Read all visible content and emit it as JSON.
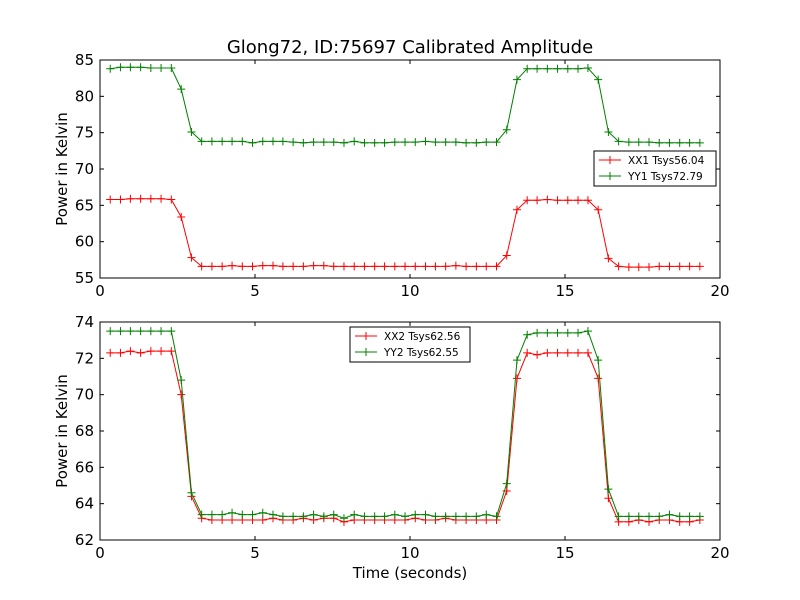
{
  "chart_data": [
    {
      "type": "line",
      "title": "Glong72, ID:75697 Calibrated Amplitude",
      "ylabel": "Power in Kelvin",
      "xlabel": "",
      "xlim": [
        0,
        20
      ],
      "ylim": [
        55,
        85
      ],
      "xticks": [
        "0",
        "5",
        "10",
        "15",
        "20"
      ],
      "yticks": [
        "55",
        "60",
        "65",
        "70",
        "75",
        "80",
        "85"
      ],
      "grid": false,
      "legend_position": "right",
      "x": [
        0.33,
        0.66,
        0.98,
        1.31,
        1.64,
        1.97,
        2.3,
        2.62,
        2.95,
        3.28,
        3.61,
        3.94,
        4.26,
        4.59,
        4.92,
        5.25,
        5.58,
        5.9,
        6.23,
        6.56,
        6.89,
        7.22,
        7.54,
        7.87,
        8.2,
        8.53,
        8.86,
        9.18,
        9.51,
        9.84,
        10.17,
        10.5,
        10.82,
        11.15,
        11.48,
        11.81,
        12.14,
        12.46,
        12.79,
        13.12,
        13.45,
        13.78,
        14.1,
        14.43,
        14.76,
        15.09,
        15.42,
        15.74,
        16.07,
        16.4,
        16.73,
        17.06,
        17.38,
        17.71,
        18.04,
        18.37,
        18.7,
        19.02,
        19.35
      ],
      "series": [
        {
          "name": "XX1 Tsys56.04",
          "color": "#ff0000",
          "values": [
            65.8,
            65.8,
            65.9,
            65.9,
            65.9,
            65.9,
            65.8,
            63.4,
            57.8,
            56.6,
            56.6,
            56.6,
            56.7,
            56.6,
            56.6,
            56.7,
            56.7,
            56.6,
            56.6,
            56.6,
            56.7,
            56.7,
            56.6,
            56.6,
            56.6,
            56.6,
            56.6,
            56.6,
            56.6,
            56.6,
            56.6,
            56.6,
            56.6,
            56.6,
            56.7,
            56.6,
            56.6,
            56.6,
            56.6,
            58.1,
            64.4,
            65.7,
            65.7,
            65.8,
            65.7,
            65.7,
            65.7,
            65.7,
            64.4,
            57.7,
            56.6,
            56.5,
            56.5,
            56.5,
            56.6,
            56.6,
            56.6,
            56.6,
            56.6
          ]
        },
        {
          "name": "YY1 Tsys72.79",
          "color": "#008000",
          "values": [
            83.8,
            84.0,
            84.0,
            84.0,
            83.9,
            83.9,
            83.9,
            81.0,
            75.1,
            73.8,
            73.8,
            73.8,
            73.8,
            73.8,
            73.6,
            73.8,
            73.8,
            73.8,
            73.7,
            73.6,
            73.7,
            73.7,
            73.7,
            73.6,
            73.8,
            73.6,
            73.6,
            73.6,
            73.7,
            73.7,
            73.7,
            73.8,
            73.7,
            73.7,
            73.7,
            73.6,
            73.6,
            73.7,
            73.7,
            75.4,
            82.3,
            83.8,
            83.8,
            83.8,
            83.8,
            83.8,
            83.8,
            83.9,
            82.3,
            75.1,
            73.8,
            73.7,
            73.7,
            73.7,
            73.6,
            73.6,
            73.6,
            73.6,
            73.6
          ]
        }
      ]
    },
    {
      "type": "line",
      "title": "",
      "ylabel": "Power in Kelvin",
      "xlabel": "Time (seconds)",
      "xlim": [
        0,
        20
      ],
      "ylim": [
        62,
        74
      ],
      "xticks": [
        "0",
        "5",
        "10",
        "15",
        "20"
      ],
      "yticks": [
        "62",
        "64",
        "66",
        "68",
        "70",
        "72",
        "74"
      ],
      "grid": false,
      "legend_position": "top-center",
      "x": [
        0.33,
        0.66,
        0.98,
        1.31,
        1.64,
        1.97,
        2.3,
        2.62,
        2.95,
        3.28,
        3.61,
        3.94,
        4.26,
        4.59,
        4.92,
        5.25,
        5.58,
        5.9,
        6.23,
        6.56,
        6.89,
        7.22,
        7.54,
        7.87,
        8.2,
        8.53,
        8.86,
        9.18,
        9.51,
        9.84,
        10.17,
        10.5,
        10.82,
        11.15,
        11.48,
        11.81,
        12.14,
        12.46,
        12.79,
        13.12,
        13.45,
        13.78,
        14.1,
        14.43,
        14.76,
        15.09,
        15.42,
        15.74,
        16.07,
        16.4,
        16.73,
        17.06,
        17.38,
        17.71,
        18.04,
        18.37,
        18.7,
        19.02,
        19.35
      ],
      "series": [
        {
          "name": "XX2 Tsys62.56",
          "color": "#ff0000",
          "values": [
            72.3,
            72.3,
            72.4,
            72.3,
            72.4,
            72.4,
            72.4,
            70.0,
            64.4,
            63.2,
            63.1,
            63.1,
            63.1,
            63.1,
            63.1,
            63.1,
            63.2,
            63.1,
            63.1,
            63.2,
            63.1,
            63.2,
            63.2,
            63.0,
            63.1,
            63.1,
            63.1,
            63.1,
            63.1,
            63.1,
            63.2,
            63.1,
            63.1,
            63.2,
            63.1,
            63.1,
            63.1,
            63.1,
            63.1,
            64.7,
            70.9,
            72.3,
            72.2,
            72.3,
            72.3,
            72.3,
            72.3,
            72.3,
            70.9,
            64.3,
            63.0,
            63.0,
            63.1,
            63.0,
            63.1,
            63.1,
            63.0,
            63.0,
            63.1
          ]
        },
        {
          "name": "YY2 Tsys62.55",
          "color": "#008000",
          "values": [
            73.5,
            73.5,
            73.5,
            73.5,
            73.5,
            73.5,
            73.5,
            70.8,
            64.6,
            63.4,
            63.4,
            63.4,
            63.5,
            63.4,
            63.4,
            63.5,
            63.4,
            63.3,
            63.3,
            63.3,
            63.4,
            63.3,
            63.4,
            63.2,
            63.4,
            63.3,
            63.3,
            63.3,
            63.4,
            63.3,
            63.4,
            63.4,
            63.3,
            63.3,
            63.3,
            63.3,
            63.3,
            63.4,
            63.3,
            65.1,
            71.9,
            73.3,
            73.4,
            73.4,
            73.4,
            73.4,
            73.4,
            73.5,
            71.9,
            64.8,
            63.3,
            63.3,
            63.3,
            63.3,
            63.3,
            63.4,
            63.3,
            63.3,
            63.3
          ]
        }
      ]
    }
  ]
}
